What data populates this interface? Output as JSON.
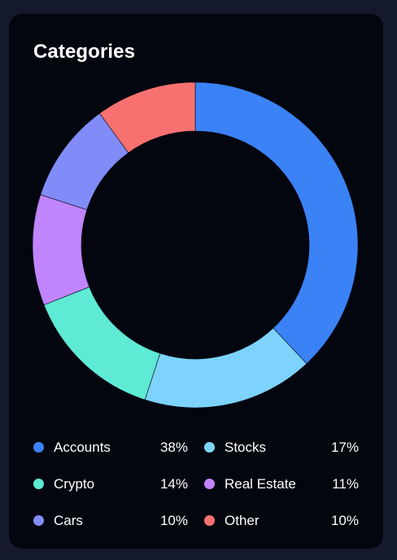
{
  "card": {
    "title": "Categories"
  },
  "chart_data": {
    "type": "pie",
    "categories": [
      "Accounts",
      "Stocks",
      "Crypto",
      "Real Estate",
      "Cars",
      "Other"
    ],
    "values": [
      38,
      17,
      14,
      11,
      10,
      10
    ],
    "value_labels": [
      "38%",
      "17%",
      "14%",
      "11%",
      "10%",
      "10%"
    ],
    "colors": [
      "#3b82f6",
      "#7dd3fc",
      "#5eead4",
      "#c084fc",
      "#818cf8",
      "#f87171"
    ],
    "title": "Categories",
    "legend": "bottom"
  }
}
